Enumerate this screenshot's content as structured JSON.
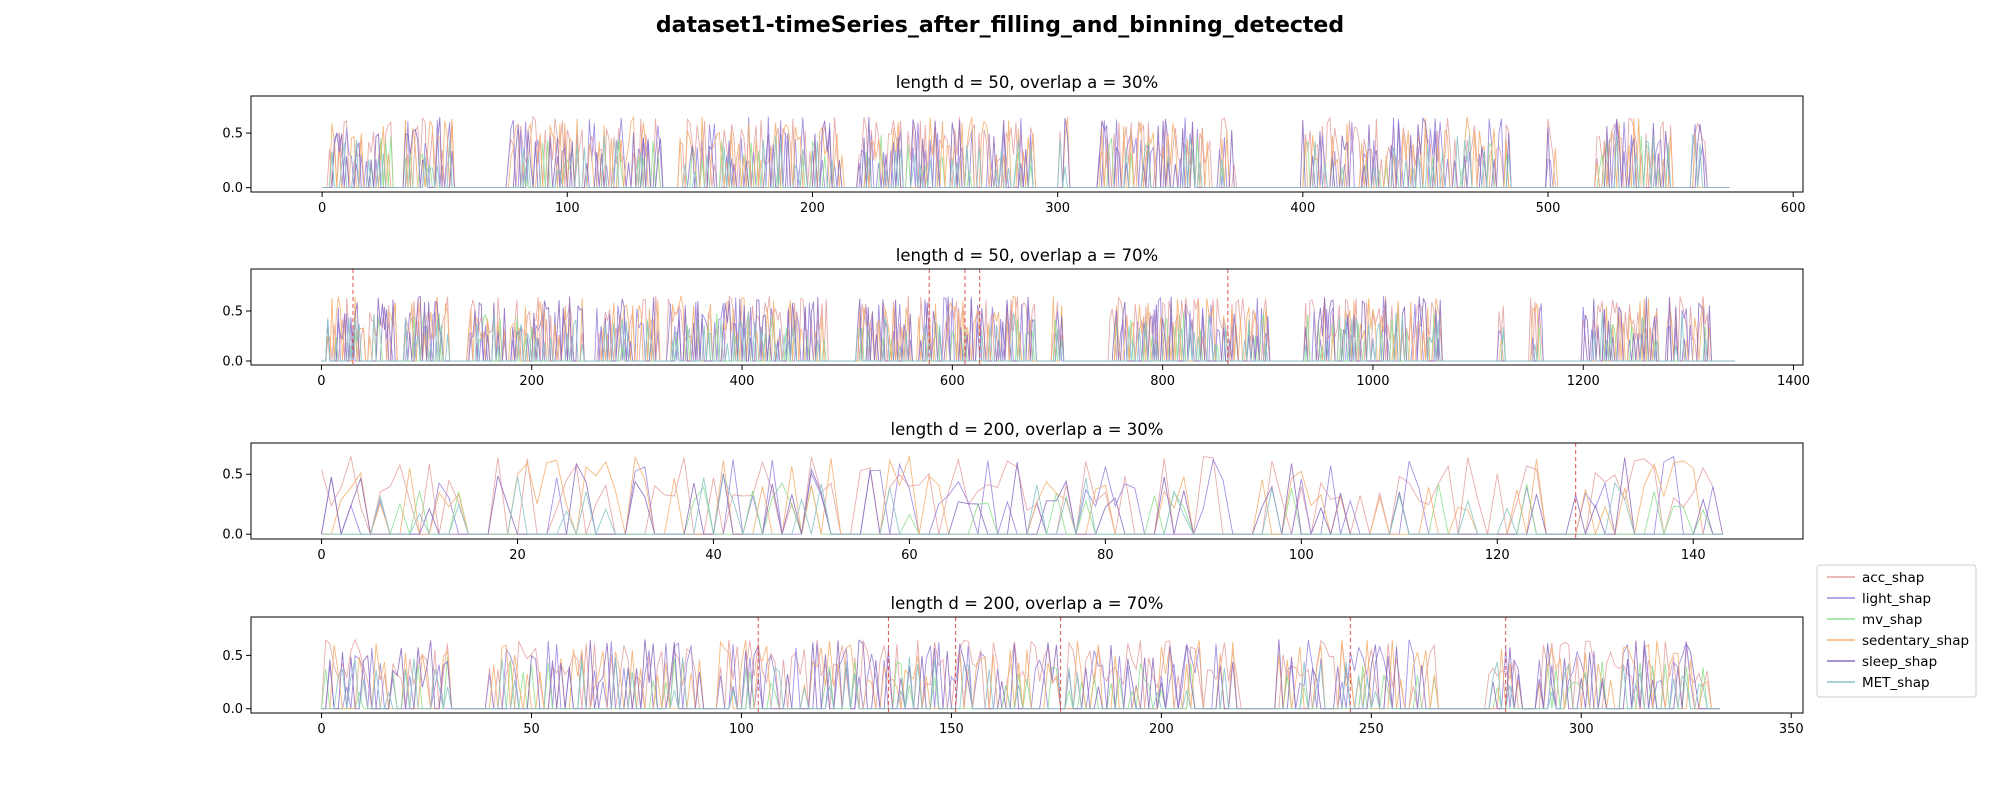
{
  "title": "dataset1-timeSeries_after_filling_and_binning_detected",
  "legend": {
    "placement": "right",
    "entries": [
      {
        "name": "acc_shap",
        "color": "#e6a3a3"
      },
      {
        "name": "light_shap",
        "color": "#9b86e0"
      },
      {
        "name": "mv_shap",
        "color": "#8fe08f"
      },
      {
        "name": "sedentary_shap",
        "color": "#f5b070"
      },
      {
        "name": "sleep_shap",
        "color": "#8f6fc0"
      },
      {
        "name": "MET_shap",
        "color": "#88c4c8"
      }
    ]
  },
  "chart_data": [
    {
      "type": "line",
      "title": "length d = 50, overlap a = 30%",
      "xlim": [
        -29,
        604
      ],
      "ylim": [
        -0.04,
        0.84
      ],
      "xticks": [
        0,
        100,
        200,
        300,
        400,
        500,
        600
      ],
      "yticks": [
        0.0,
        0.5
      ],
      "n_points": 575,
      "bursts": [
        [
          3,
          16
        ],
        [
          18,
          28
        ],
        [
          34,
          44
        ],
        [
          45,
          53
        ],
        [
          76,
          100
        ],
        [
          101,
          138
        ],
        [
          146,
          168
        ],
        [
          168,
          200
        ],
        [
          201,
          212
        ],
        [
          219,
          236
        ],
        [
          239,
          258
        ],
        [
          258,
          290
        ],
        [
          301,
          304
        ],
        [
          317,
          336
        ],
        [
          336,
          362
        ],
        [
          366,
          372
        ],
        [
          400,
          432
        ],
        [
          434,
          460
        ],
        [
          462,
          480
        ],
        [
          481,
          484
        ],
        [
          500,
          503
        ],
        [
          520,
          528
        ],
        [
          528,
          550
        ],
        [
          559,
          564
        ]
      ],
      "detected": []
    },
    {
      "type": "line",
      "title": "length d = 50, overlap a = 70%",
      "xlim": [
        -67,
        1409
      ],
      "ylim": [
        -0.04,
        0.92
      ],
      "xticks": [
        0,
        200,
        400,
        600,
        800,
        1000,
        1200,
        1400
      ],
      "yticks": [
        0.0,
        0.5
      ],
      "n_points": 1345,
      "bursts": [
        [
          5,
          40
        ],
        [
          45,
          70
        ],
        [
          80,
          120
        ],
        [
          140,
          175
        ],
        [
          180,
          250
        ],
        [
          262,
          320
        ],
        [
          330,
          360
        ],
        [
          360,
          480
        ],
        [
          510,
          560
        ],
        [
          565,
          680
        ],
        [
          695,
          705
        ],
        [
          750,
          900
        ],
        [
          935,
          1065
        ],
        [
          1120,
          1125
        ],
        [
          1150,
          1160
        ],
        [
          1200,
          1270
        ],
        [
          1280,
          1320
        ]
      ],
      "detected": [
        30,
        578,
        612,
        626,
        862
      ]
    },
    {
      "type": "line",
      "title": "length d = 200, overlap a = 30%",
      "xlim": [
        -7.2,
        151.2
      ],
      "ylim": [
        -0.04,
        0.76
      ],
      "xticks": [
        0,
        20,
        40,
        60,
        80,
        100,
        120,
        140
      ],
      "yticks": [
        0.0,
        0.5
      ],
      "n_points": 144,
      "bursts": [
        [
          0,
          14
        ],
        [
          18,
          38
        ],
        [
          38,
          52
        ],
        [
          55,
          76
        ],
        [
          78,
          92
        ],
        [
          96,
          118
        ],
        [
          120,
          124
        ],
        [
          128,
          142
        ]
      ],
      "detected": [
        128
      ]
    },
    {
      "type": "line",
      "title": "length d = 200, overlap a = 70%",
      "xlim": [
        -16.8,
        352.8
      ],
      "ylim": [
        -0.04,
        0.86
      ],
      "xticks": [
        0,
        50,
        100,
        150,
        200,
        250,
        300,
        350
      ],
      "yticks": [
        0.0,
        0.5
      ],
      "n_points": 334,
      "bursts": [
        [
          0,
          30
        ],
        [
          40,
          90
        ],
        [
          95,
          150
        ],
        [
          150,
          175
        ],
        [
          178,
          218
        ],
        [
          228,
          265
        ],
        [
          278,
          285
        ],
        [
          290,
          330
        ]
      ],
      "detected": [
        104,
        135,
        151,
        176,
        245,
        282
      ]
    }
  ]
}
